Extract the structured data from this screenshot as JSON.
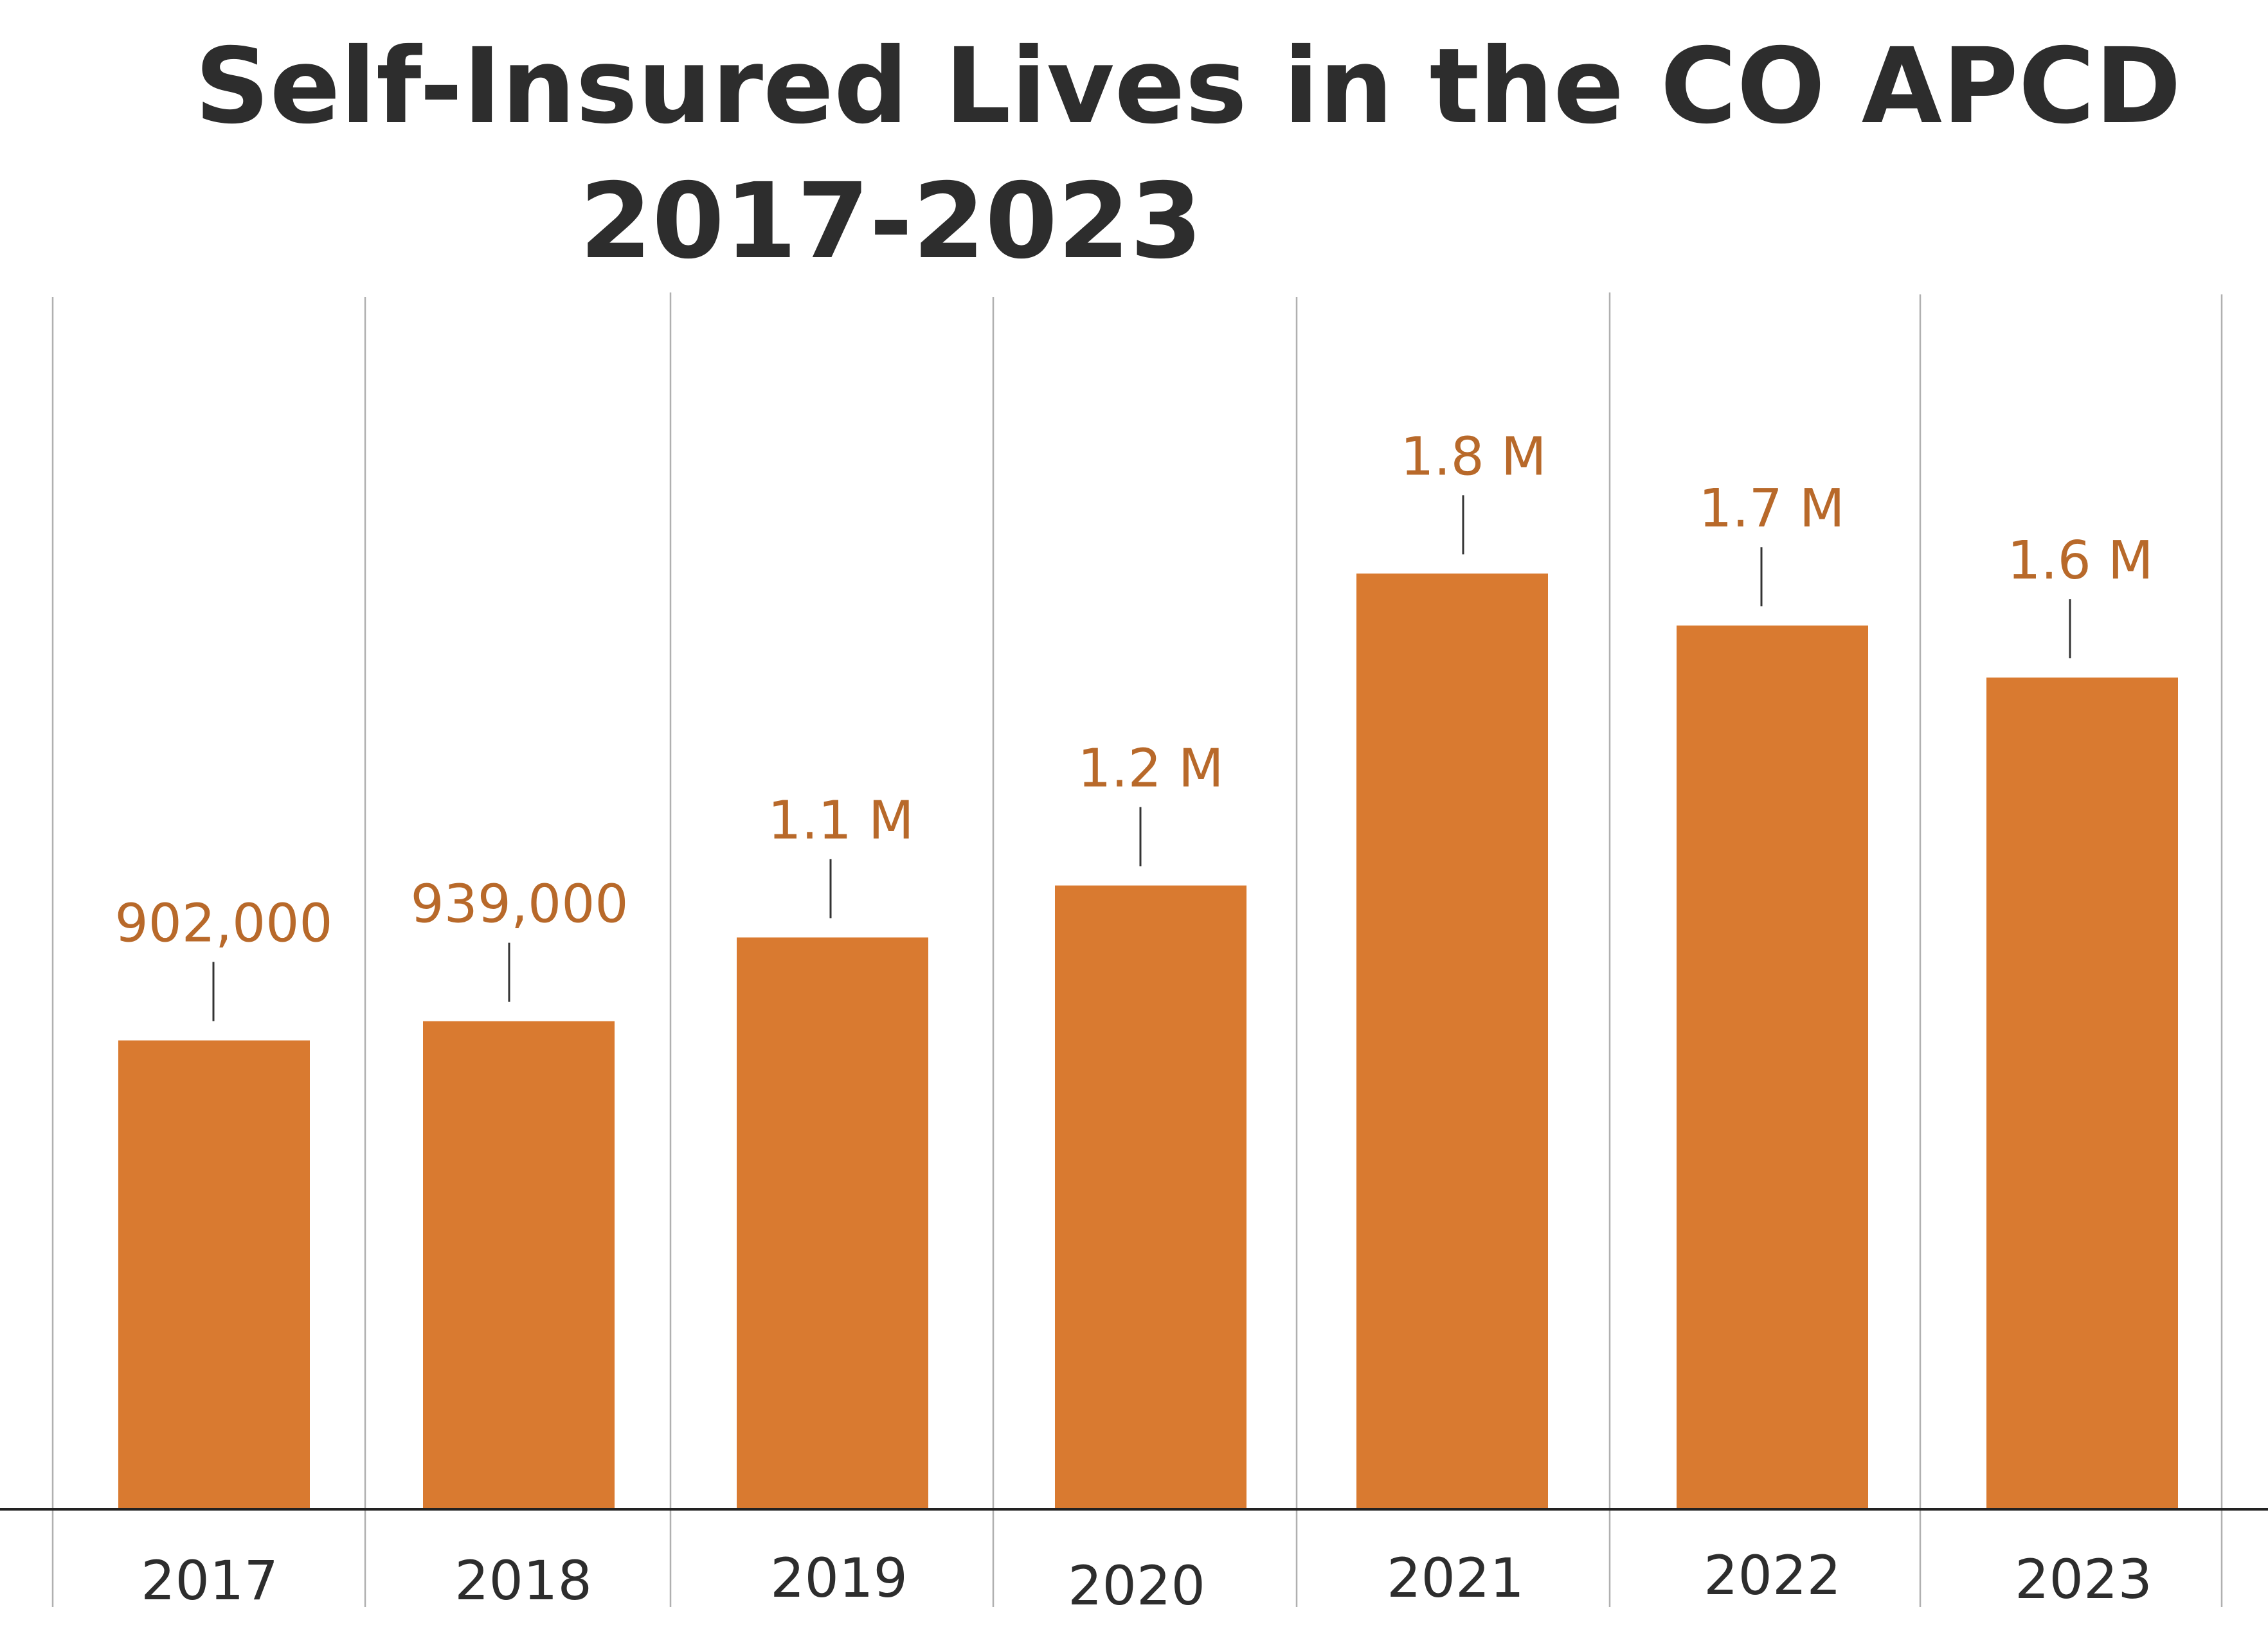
{
  "chart_data": {
    "type": "bar",
    "title_lines": [
      "Self-Insured Lives in the CO APCD",
      "2017-2023"
    ],
    "categories": [
      "2017",
      "2018",
      "2019",
      "2020",
      "2021",
      "2022",
      "2023"
    ],
    "values": [
      902000,
      939000,
      1100000,
      1200000,
      1800000,
      1700000,
      1600000
    ],
    "data_labels": [
      "902,000",
      "939,000",
      "1.1 M",
      "1.2 M",
      "1.8 M",
      "1.7 M",
      "1.6 M"
    ],
    "xlabel": "",
    "ylabel": "",
    "y_axis_visible": false,
    "grid": "vertical separators between categories",
    "legend": "none",
    "colors": {
      "bar": "#D97A30",
      "label": "#B8692A",
      "text": "#2D2D2D",
      "grid": "#B0B0B0",
      "axis": "#222222"
    }
  }
}
